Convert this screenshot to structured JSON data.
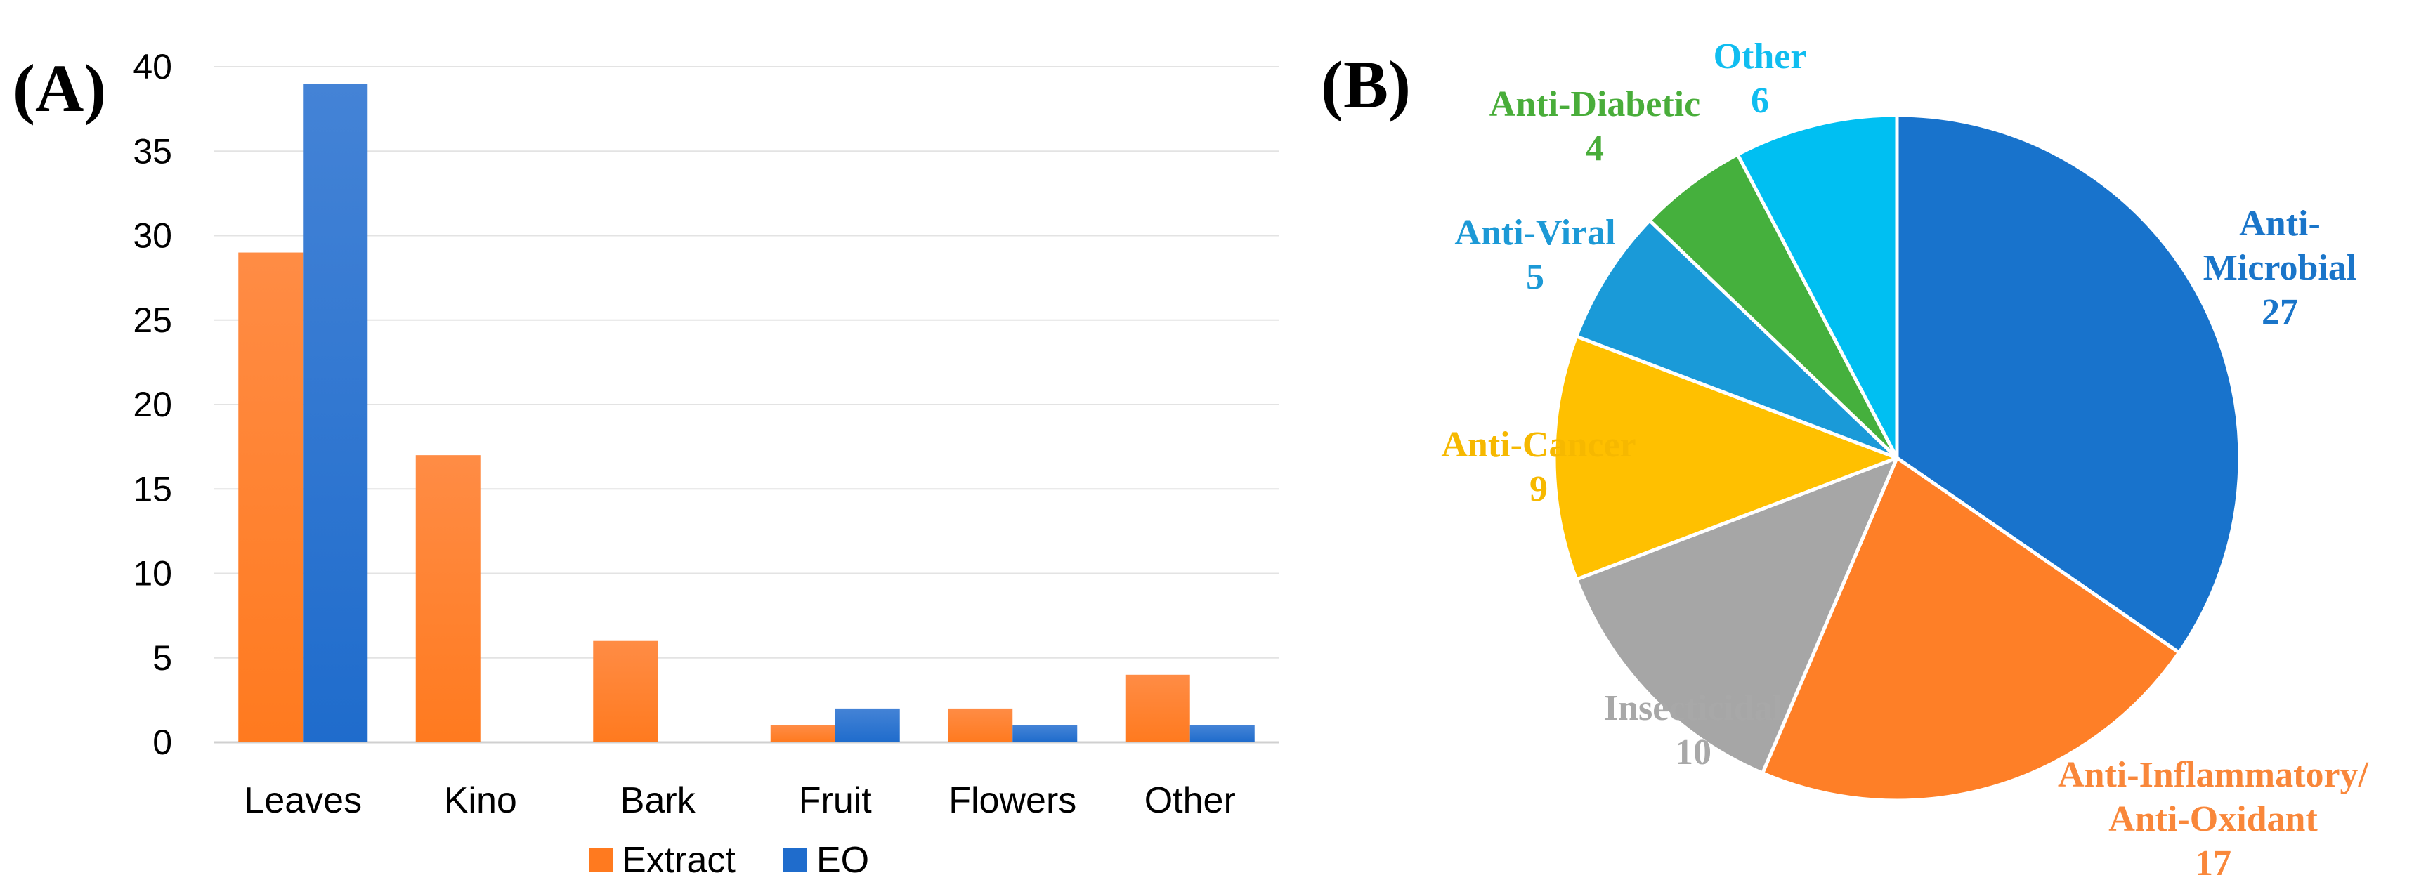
{
  "panels": {
    "a_label": "(A)",
    "b_label": "(B)"
  },
  "chart_data": [
    {
      "type": "bar",
      "title": "",
      "xlabel": "",
      "ylabel": "",
      "categories": [
        "Leaves",
        "Kino",
        "Bark",
        "Fruit",
        "Flowers",
        "Other"
      ],
      "series": [
        {
          "name": "Extract",
          "values": [
            29,
            17,
            6,
            1,
            2,
            4
          ],
          "color": "#ff7a1f"
        },
        {
          "name": "EO",
          "values": [
            39,
            0,
            0,
            2,
            1,
            1
          ],
          "color": "#1f6ccc"
        }
      ],
      "ylim": [
        0,
        40
      ],
      "yticks": [
        "0",
        "5",
        "10",
        "15",
        "20",
        "25",
        "30",
        "35",
        "40"
      ],
      "grid": true,
      "legend": "bottom"
    },
    {
      "type": "pie",
      "title": "",
      "slices": [
        {
          "lines": [
            "Anti-",
            "Microbial"
          ],
          "value": 27,
          "color": "#1873cc",
          "label_color": "#1a75c9"
        },
        {
          "lines": [
            "Anti-Inflammatory/",
            "Anti-Oxidant"
          ],
          "value": 17,
          "color": "#fe7f27",
          "label_color": "#f9873a"
        },
        {
          "lines": [
            "Insecticidal"
          ],
          "value": 10,
          "color": "#a6a6a6",
          "label_color": "#a8a8a8"
        },
        {
          "lines": [
            "Anti-Cancer"
          ],
          "value": 9,
          "color": "#ffc000",
          "label_color": "#f6b800"
        },
        {
          "lines": [
            "Anti-Viral"
          ],
          "value": 5,
          "color": "#1a9ad8",
          "label_color": "#1c99d6"
        },
        {
          "lines": [
            "Anti-Diabetic"
          ],
          "value": 4,
          "color": "#45b03d",
          "label_color": "#49ad3a"
        },
        {
          "lines": [
            "Other"
          ],
          "value": 6,
          "color": "#00bff2",
          "label_color": "#10bdf0"
        }
      ]
    }
  ]
}
